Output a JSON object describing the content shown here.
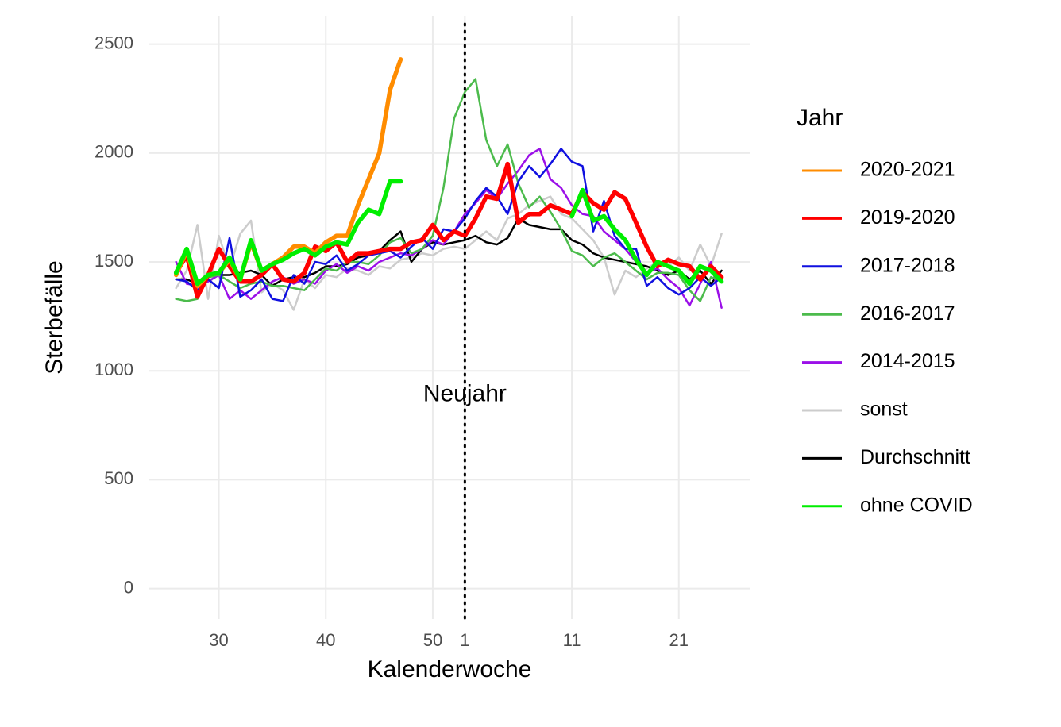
{
  "chart_data": {
    "type": "line",
    "xlabel": "Kalenderwoche",
    "ylabel": "Sterbefälle",
    "legend_title": "Jahr",
    "legend": "right",
    "grid": true,
    "x": [
      26,
      27,
      28,
      29,
      30,
      31,
      32,
      33,
      34,
      35,
      36,
      37,
      38,
      39,
      40,
      41,
      42,
      43,
      44,
      45,
      46,
      47,
      48,
      49,
      50,
      51,
      52,
      53,
      54,
      55,
      56,
      57,
      58,
      59,
      60,
      61,
      62,
      63,
      64,
      65,
      66,
      67,
      68,
      69,
      70,
      71,
      72,
      73,
      74,
      75,
      76,
      77
    ],
    "xlim": [
      23.5,
      79.7
    ],
    "xticks": [
      30,
      40,
      50,
      {
        "value": 53,
        "label": "1"
      },
      {
        "value": 63,
        "label": "11"
      },
      {
        "value": 73,
        "label": "21"
      }
    ],
    "ylim": [
      -140,
      2630
    ],
    "yticks": [
      0,
      500,
      1000,
      1500,
      2000,
      2500
    ],
    "vline": {
      "x": 53,
      "label": "Neujahr",
      "label_y": 889
    },
    "series": [
      {
        "name": "2020-2021",
        "color": "#ff8c00",
        "values": [
          1440,
          1550,
          1390,
          1440,
          1450,
          1510,
          1420,
          1590,
          1460,
          1490,
          1520,
          1570,
          1570,
          1540,
          1590,
          1620,
          1620,
          1760,
          1880,
          2000,
          2290,
          2430,
          null,
          null,
          null,
          null,
          null,
          null,
          null,
          null,
          null,
          null,
          null,
          null,
          null,
          null,
          null,
          null,
          null,
          null,
          null,
          null,
          null,
          null,
          null,
          null,
          null,
          null,
          null,
          null,
          null,
          null
        ]
      },
      {
        "name": "2019-2020",
        "color": "#ff0000",
        "values": [
          1450,
          1530,
          1340,
          1440,
          1560,
          1480,
          1410,
          1410,
          1440,
          1490,
          1420,
          1410,
          1450,
          1570,
          1550,
          1590,
          1500,
          1540,
          1540,
          1550,
          1560,
          1560,
          1590,
          1600,
          1670,
          1600,
          1640,
          1620,
          1700,
          1800,
          1790,
          1950,
          1680,
          1720,
          1720,
          1760,
          1740,
          1720,
          1820,
          1770,
          1740,
          1820,
          1790,
          1680,
          1570,
          1480,
          1510,
          1490,
          1480,
          1420,
          1480,
          1430
        ]
      },
      {
        "name": "2017-2018",
        "color": "#1010e0",
        "values": [
          1420,
          1410,
          1370,
          1420,
          1380,
          1610,
          1340,
          1370,
          1420,
          1330,
          1320,
          1440,
          1400,
          1500,
          1490,
          1530,
          1460,
          1490,
          1530,
          1540,
          1550,
          1520,
          1570,
          1610,
          1560,
          1650,
          1640,
          1700,
          1780,
          1840,
          1800,
          1720,
          1870,
          1940,
          1890,
          1950,
          2020,
          1960,
          1940,
          1640,
          1780,
          1620,
          1560,
          1560,
          1390,
          1430,
          1380,
          1350,
          1380,
          1430,
          1390,
          1430
        ]
      },
      {
        "name": "2016-2017",
        "color": "#4cbb4c",
        "values": [
          1330,
          1320,
          1330,
          1430,
          1440,
          1410,
          1380,
          1400,
          1410,
          1390,
          1390,
          1380,
          1370,
          1420,
          1470,
          1460,
          1500,
          1500,
          1490,
          1530,
          1590,
          1610,
          1540,
          1560,
          1620,
          1840,
          2160,
          2280,
          2340,
          2060,
          1940,
          2040,
          1860,
          1750,
          1800,
          1730,
          1650,
          1550,
          1530,
          1480,
          1520,
          1540,
          1500,
          1460,
          1420,
          1450,
          1450,
          1440,
          1370,
          1320,
          1430,
          1410
        ]
      },
      {
        "name": "2014-2015",
        "color": "#9b10e8",
        "values": [
          1500,
          1400,
          1390,
          1410,
          1440,
          1330,
          1370,
          1330,
          1370,
          1410,
          1430,
          1400,
          1420,
          1400,
          1460,
          1490,
          1450,
          1480,
          1460,
          1500,
          1520,
          1540,
          1530,
          1560,
          1600,
          1580,
          1640,
          1720,
          1770,
          1830,
          1790,
          1860,
          1920,
          1990,
          2020,
          1880,
          1840,
          1760,
          1720,
          1710,
          1640,
          1600,
          1560,
          1500,
          1450,
          1470,
          1420,
          1380,
          1300,
          1400,
          1500,
          1290
        ]
      },
      {
        "name": "sonst",
        "color": "#cccccc",
        "values": [
          1380,
          1460,
          1670,
          1330,
          1620,
          1470,
          1630,
          1690,
          1360,
          1400,
          1370,
          1280,
          1420,
          1380,
          1440,
          1430,
          1470,
          1460,
          1440,
          1480,
          1470,
          1510,
          1520,
          1540,
          1530,
          1560,
          1570,
          1560,
          1600,
          1640,
          1600,
          1700,
          1720,
          1760,
          1780,
          1800,
          1720,
          1700,
          1650,
          1600,
          1520,
          1350,
          1460,
          1430,
          1470,
          1500,
          1480,
          1520,
          1460,
          1580,
          1480,
          1630
        ]
      },
      {
        "name": "Durchschnitt",
        "color": "#000000",
        "values": [
          1420,
          1420,
          1400,
          1430,
          1440,
          1440,
          1450,
          1460,
          1440,
          1390,
          1420,
          1430,
          1430,
          1450,
          1480,
          1480,
          1490,
          1520,
          1530,
          1550,
          1600,
          1640,
          1500,
          1560,
          1590,
          1580,
          1590,
          1600,
          1620,
          1590,
          1580,
          1610,
          1700,
          1670,
          1660,
          1650,
          1650,
          1600,
          1580,
          1540,
          1520,
          1510,
          1500,
          1490,
          1480,
          1460,
          1440,
          1460,
          1420,
          1460,
          1400,
          1460
        ]
      },
      {
        "name": "ohne COVID",
        "color": "#00ee00",
        "values": [
          1450,
          1560,
          1400,
          1440,
          1450,
          1520,
          1420,
          1600,
          1460,
          1490,
          1510,
          1540,
          1560,
          1530,
          1570,
          1590,
          1580,
          1680,
          1740,
          1720,
          1870,
          1870,
          null,
          null,
          null,
          null,
          null,
          null,
          null,
          null,
          null,
          null,
          null,
          null,
          null,
          null,
          null,
          1710,
          1830,
          1690,
          1710,
          1650,
          1600,
          1510,
          1440,
          1500,
          1480,
          1460,
          1400,
          1480,
          1460,
          1410
        ]
      }
    ]
  }
}
